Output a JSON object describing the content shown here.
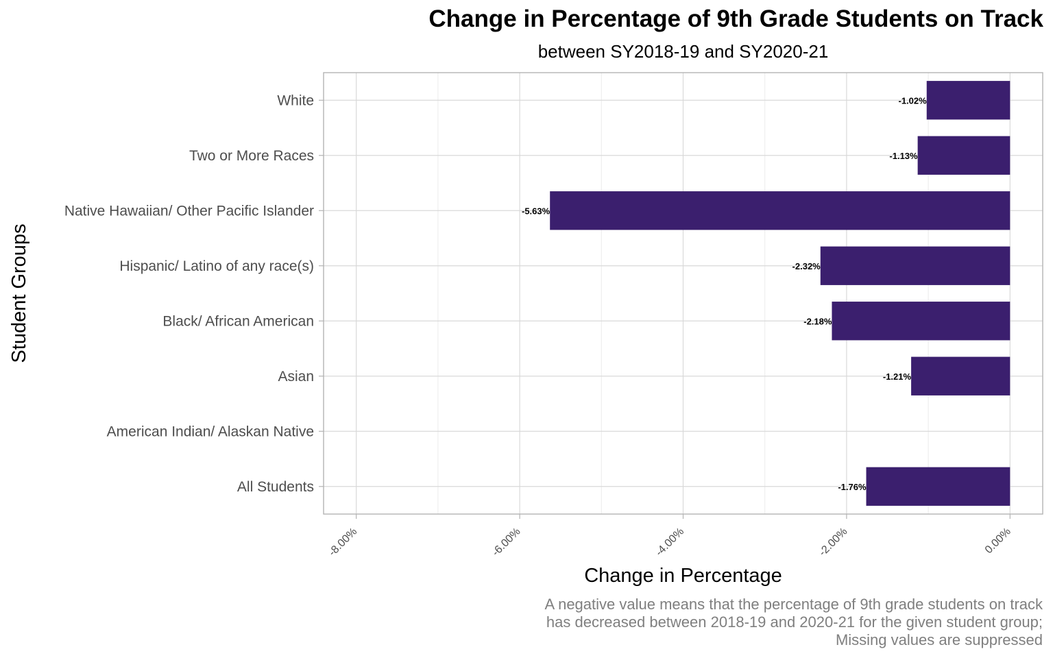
{
  "chart_data": {
    "type": "bar",
    "orientation": "horizontal",
    "title": "Change in Percentage of 9th Grade Students on Track",
    "subtitle": "between SY2018-19 and SY2020-21",
    "xlabel": "Change in Percentage",
    "ylabel": "Student Groups",
    "caption": [
      "A negative value means that the percentage of 9th grade students on track",
      "has decreased between 2018-19 and 2020-21 for the given student group;",
      "Missing values are suppressed"
    ],
    "categories": [
      "White",
      "Two or More Races",
      "Native Hawaiian/ Other Pacific Islander",
      "Hispanic/ Latino of any race(s)",
      "Black/ African American",
      "Asian",
      "American Indian/ Alaskan Native",
      "All Students"
    ],
    "values": [
      -1.02,
      -1.13,
      -5.63,
      -2.32,
      -2.18,
      -1.21,
      null,
      -1.76
    ],
    "data_labels": [
      "-1.02%",
      "-1.13%",
      "-5.63%",
      "-2.32%",
      "-2.18%",
      "-1.21%",
      "",
      "-1.76%"
    ],
    "xlim": [
      -8.4,
      0.4
    ],
    "xticks": [
      -8,
      -6,
      -4,
      -2,
      0
    ],
    "xtick_labels": [
      "-8.00%",
      "-6.00%",
      "-4.00%",
      "-2.00%",
      "0.00%"
    ],
    "bar_color": "#3b1f6e",
    "grid": true,
    "legend": "none"
  }
}
